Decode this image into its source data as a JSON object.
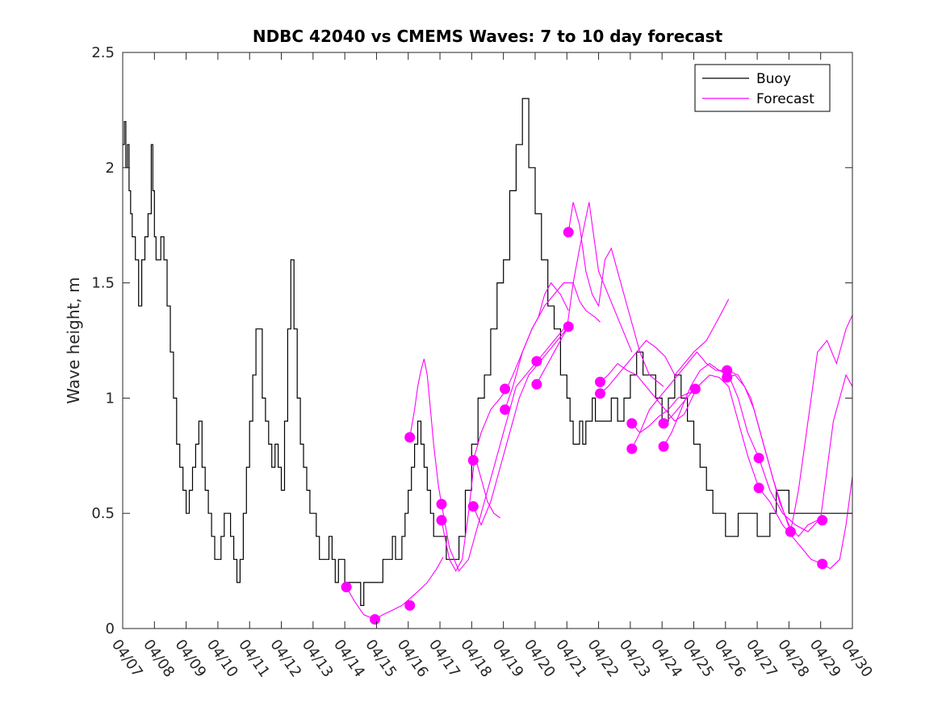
{
  "chart_data": {
    "type": "line",
    "title": "NDBC 42040 vs CMEMS Waves: 7 to 10 day forecast",
    "xlabel": "",
    "ylabel": "Wave height, m",
    "xlim": [
      0,
      23
    ],
    "ylim": [
      0,
      2.5
    ],
    "x_ticks": [
      "04/07",
      "04/08",
      "04/09",
      "04/10",
      "04/11",
      "04/12",
      "04/13",
      "04/14",
      "04/15",
      "04/16",
      "04/17",
      "04/18",
      "04/19",
      "04/20",
      "04/21",
      "04/22",
      "04/23",
      "04/24",
      "04/25",
      "04/26",
      "04/27",
      "04/28",
      "04/29",
      "04/30"
    ],
    "y_ticks": [
      0,
      0.5,
      1,
      1.5,
      2,
      2.5
    ],
    "y_tick_labels": [
      "0",
      "0.5",
      "1",
      "1.5",
      "2",
      "2.5"
    ],
    "grid": false,
    "legend_position": "top-right",
    "legend": [
      "Buoy",
      "Forecast"
    ],
    "colors": {
      "buoy": "#000000",
      "forecast": "#ff00ff"
    },
    "series": [
      {
        "name": "Buoy",
        "x": [
          0,
          0.05,
          0.1,
          0.15,
          0.2,
          0.25,
          0.3,
          0.35,
          0.4,
          0.5,
          0.6,
          0.7,
          0.8,
          0.9,
          0.95,
          1.0,
          1.05,
          1.1,
          1.2,
          1.3,
          1.4,
          1.5,
          1.6,
          1.7,
          1.8,
          1.9,
          2.0,
          2.1,
          2.2,
          2.3,
          2.4,
          2.5,
          2.6,
          2.7,
          2.8,
          2.9,
          3.0,
          3.1,
          3.2,
          3.3,
          3.4,
          3.5,
          3.6,
          3.7,
          3.8,
          3.9,
          4.0,
          4.1,
          4.2,
          4.3,
          4.4,
          4.5,
          4.6,
          4.7,
          4.8,
          4.9,
          5.0,
          5.1,
          5.2,
          5.3,
          5.4,
          5.5,
          5.6,
          5.7,
          5.8,
          5.9,
          6.0,
          6.1,
          6.2,
          6.3,
          6.4,
          6.5,
          6.6,
          6.7,
          6.8,
          6.9,
          7.0,
          7.1,
          7.2,
          7.3,
          7.4,
          7.5,
          7.6,
          7.7,
          7.8,
          7.9,
          8.0,
          8.1,
          8.2,
          8.3,
          8.4,
          8.5,
          8.6,
          8.7,
          8.8,
          8.9,
          9.0,
          9.1,
          9.2,
          9.3,
          9.4,
          9.5,
          9.6,
          9.7,
          9.8,
          9.9,
          10.0,
          10.2,
          10.4,
          10.6,
          10.8,
          11.0,
          11.2,
          11.4,
          11.6,
          11.8,
          12.0,
          12.2,
          12.4,
          12.6,
          12.8,
          13.0,
          13.2,
          13.4,
          13.6,
          13.8,
          14.0,
          14.1,
          14.2,
          14.3,
          14.4,
          14.5,
          14.6,
          14.7,
          14.8,
          14.9,
          15.0,
          15.2,
          15.4,
          15.6,
          15.8,
          16.0,
          16.2,
          16.4,
          16.6,
          16.8,
          17.0,
          17.2,
          17.4,
          17.6,
          17.8,
          18.0,
          18.2,
          18.4,
          18.6,
          18.8,
          19.0,
          19.2,
          19.4,
          19.6,
          19.8,
          20.0,
          20.2,
          20.4,
          20.6,
          20.8,
          21.0,
          21.2,
          21.4,
          21.6,
          21.8,
          22.0,
          22.2,
          22.4,
          22.6
        ],
        "y": [
          2.1,
          2.2,
          2.0,
          2.1,
          1.9,
          1.8,
          1.7,
          1.7,
          1.6,
          1.4,
          1.6,
          1.7,
          1.8,
          2.1,
          1.9,
          1.7,
          1.6,
          1.6,
          1.7,
          1.6,
          1.4,
          1.2,
          1.0,
          0.8,
          0.7,
          0.6,
          0.5,
          0.6,
          0.7,
          0.8,
          0.9,
          0.7,
          0.6,
          0.5,
          0.4,
          0.3,
          0.3,
          0.4,
          0.5,
          0.5,
          0.4,
          0.3,
          0.2,
          0.3,
          0.5,
          0.7,
          0.9,
          1.1,
          1.3,
          1.3,
          1.0,
          0.9,
          0.8,
          0.7,
          0.8,
          0.7,
          0.6,
          0.9,
          1.3,
          1.6,
          1.3,
          1.0,
          0.8,
          0.7,
          0.6,
          0.5,
          0.5,
          0.4,
          0.3,
          0.3,
          0.3,
          0.4,
          0.3,
          0.2,
          0.3,
          0.3,
          0.2,
          0.2,
          0.2,
          0.2,
          0.2,
          0.1,
          0.2,
          0.2,
          0.2,
          0.2,
          0.2,
          0.2,
          0.3,
          0.3,
          0.3,
          0.4,
          0.3,
          0.3,
          0.4,
          0.5,
          0.6,
          0.7,
          0.8,
          0.9,
          0.8,
          0.7,
          0.6,
          0.5,
          0.4,
          0.4,
          0.4,
          0.3,
          0.3,
          0.4,
          0.6,
          0.8,
          1.0,
          1.1,
          1.3,
          1.5,
          1.6,
          1.9,
          2.1,
          2.3,
          2.0,
          1.8,
          1.6,
          1.4,
          1.3,
          1.1,
          1.0,
          0.9,
          0.8,
          0.8,
          0.9,
          0.8,
          0.9,
          0.9,
          1.0,
          0.9,
          0.9,
          0.9,
          1.0,
          0.9,
          1.0,
          1.1,
          1.2,
          1.1,
          1.1,
          1.0,
          0.9,
          1.0,
          1.1,
          1.0,
          0.9,
          0.8,
          0.7,
          0.6,
          0.5,
          0.5,
          0.4,
          0.4,
          0.5,
          0.5,
          0.5,
          0.4,
          0.4,
          0.5,
          0.6,
          0.6,
          0.5,
          0.5,
          0.5,
          0.5,
          0.5,
          0.5,
          0.5,
          0.5,
          0.5
        ]
      },
      {
        "name": "Forecast",
        "runs": [
          {
            "x": [
              7.05,
              7.3,
              7.6,
              7.95,
              8.2,
              8.5,
              8.8,
              9.05,
              9.3,
              9.6,
              9.9,
              10.1
            ],
            "y": [
              0.18,
              0.12,
              0.06,
              0.04,
              0.06,
              0.08,
              0.1,
              0.13,
              0.16,
              0.2,
              0.26,
              0.31
            ]
          },
          {
            "x": [
              9.05,
              9.2,
              9.3,
              9.4,
              9.5,
              9.6,
              9.7,
              9.8,
              9.95,
              10.05
            ],
            "y": [
              0.83,
              0.95,
              1.05,
              1.12,
              1.17,
              1.1,
              0.95,
              0.8,
              0.62,
              0.54
            ]
          },
          {
            "x": [
              10.05,
              10.15,
              10.3,
              10.5,
              10.7,
              10.9,
              11.1,
              11.3,
              11.5,
              11.7,
              11.9
            ],
            "y": [
              0.47,
              0.4,
              0.3,
              0.25,
              0.3,
              0.5,
              0.75,
              0.65,
              0.55,
              0.5,
              0.48
            ]
          },
          {
            "x": [
              11.05,
              11.3,
              11.6,
              11.9,
              12.1,
              12.3,
              12.6,
              12.9,
              13.1,
              13.3,
              13.5,
              13.8,
              14.05
            ],
            "y": [
              0.73,
              0.85,
              0.95,
              1.0,
              1.04,
              1.1,
              1.2,
              1.3,
              1.35,
              1.45,
              1.5,
              1.45,
              1.38
            ]
          },
          {
            "x": [
              12.05,
              12.3,
              12.6,
              12.9,
              13.1,
              13.3,
              13.6,
              13.9,
              14.2,
              14.4,
              14.6,
              14.9,
              15.05
            ],
            "y": [
              0.95,
              1.05,
              1.2,
              1.3,
              1.35,
              1.4,
              1.45,
              1.5,
              1.5,
              1.42,
              1.38,
              1.35,
              1.33
            ]
          },
          {
            "x": [
              13.05,
              13.2,
              13.4,
              13.6,
              13.8,
              14.0,
              14.2,
              14.4,
              14.7,
              15.0,
              15.3,
              15.6,
              16.05
            ],
            "y": [
              1.06,
              1.1,
              1.15,
              1.2,
              1.25,
              1.3,
              1.5,
              1.65,
              1.85,
              1.55,
              1.45,
              1.35,
              1.2
            ]
          },
          {
            "x": [
              14.05,
              14.2,
              14.4,
              14.6,
              14.8,
              15.0,
              15.2,
              15.4,
              15.6,
              15.8,
              16.0,
              16.3,
              16.6,
              17.05
            ],
            "y": [
              1.72,
              1.85,
              1.75,
              1.55,
              1.45,
              1.4,
              1.6,
              1.65,
              1.55,
              1.45,
              1.35,
              1.2,
              1.1,
              1.05
            ]
          },
          {
            "x": [
              10.05,
              10.3,
              10.6,
              10.9,
              11.2,
              11.5,
              11.8,
              12.1,
              12.4,
              12.7,
              13.0,
              13.3,
              13.6,
              13.9,
              14.05
            ],
            "y": [
              0.54,
              0.35,
              0.25,
              0.3,
              0.45,
              0.6,
              0.75,
              0.9,
              1.05,
              1.1,
              1.15,
              1.2,
              1.25,
              1.3,
              1.31
            ]
          },
          {
            "x": [
              11.05,
              11.3,
              11.6,
              11.9,
              12.2,
              12.5,
              12.8,
              13.1,
              13.4,
              13.7,
              14.05
            ],
            "y": [
              0.53,
              0.45,
              0.55,
              0.7,
              0.85,
              1.0,
              1.1,
              1.15,
              1.2,
              1.25,
              1.31
            ]
          },
          {
            "x": [
              15.05,
              15.3,
              15.6,
              15.9,
              16.2,
              16.5,
              16.8,
              17.1,
              17.4,
              17.7,
              18.05
            ],
            "y": [
              1.07,
              1.1,
              1.15,
              1.12,
              1.1,
              1.05,
              1.0,
              0.95,
              0.9,
              0.93,
              1.03
            ]
          },
          {
            "x": [
              15.05,
              15.3,
              15.6,
              15.9,
              16.2,
              16.5,
              16.8,
              17.1,
              17.4,
              17.7,
              18.0,
              18.4,
              18.8,
              19.1
            ],
            "y": [
              1.02,
              1.05,
              1.1,
              1.15,
              1.2,
              1.25,
              1.22,
              1.18,
              1.1,
              1.15,
              1.2,
              1.25,
              1.35,
              1.43
            ]
          },
          {
            "x": [
              16.05,
              16.3,
              16.6,
              16.9,
              17.2,
              17.5,
              17.8,
              18.1,
              18.4,
              18.7,
              19.05
            ],
            "y": [
              0.78,
              0.85,
              0.95,
              1.0,
              1.05,
              1.1,
              1.15,
              1.2,
              1.15,
              1.12,
              1.12
            ]
          },
          {
            "x": [
              16.05,
              16.3,
              16.6,
              16.9,
              17.2,
              17.5,
              17.8,
              18.05
            ],
            "y": [
              0.89,
              0.85,
              0.88,
              0.92,
              0.95,
              1.0,
              1.02,
              1.03
            ]
          },
          {
            "x": [
              17.05,
              17.3,
              17.6,
              17.9,
              18.2,
              18.5,
              18.8,
              19.1,
              19.4,
              19.7,
              20.05
            ],
            "y": [
              0.79,
              0.85,
              0.95,
              1.05,
              1.12,
              1.15,
              1.12,
              1.1,
              1.0,
              0.85,
              0.74
            ]
          },
          {
            "x": [
              17.05,
              17.3,
              17.6,
              17.9,
              18.2,
              18.5,
              18.8,
              19.1,
              19.4,
              19.7,
              20.05
            ],
            "y": [
              0.89,
              0.92,
              0.97,
              1.02,
              1.06,
              1.1,
              1.09,
              1.05,
              0.9,
              0.75,
              0.61
            ]
          },
          {
            "x": [
              19.05,
              19.3,
              19.6,
              19.9,
              20.2,
              20.5,
              20.8,
              21.05
            ],
            "y": [
              1.09,
              1.1,
              1.05,
              0.95,
              0.8,
              0.65,
              0.52,
              0.42
            ]
          },
          {
            "x": [
              19.05,
              19.4,
              19.8,
              20.1,
              20.4,
              20.7,
              21.0,
              21.3,
              21.6,
              21.9,
              22.05
            ],
            "y": [
              1.12,
              1.1,
              1.0,
              0.85,
              0.7,
              0.55,
              0.45,
              0.4,
              0.45,
              0.47,
              0.47
            ]
          },
          {
            "x": [
              20.05,
              20.4,
              20.8,
              21.1,
              21.4,
              21.7,
              22.05
            ],
            "y": [
              0.61,
              0.55,
              0.45,
              0.4,
              0.35,
              0.3,
              0.28
            ]
          },
          {
            "x": [
              21.05,
              21.3,
              21.6,
              21.9,
              22.2,
              22.5,
              22.8,
              23.0
            ],
            "y": [
              0.42,
              0.6,
              0.9,
              1.2,
              1.25,
              1.15,
              1.3,
              1.36
            ]
          },
          {
            "x": [
              22.05,
              22.3,
              22.6,
              22.8,
              23.0
            ],
            "y": [
              0.28,
              0.26,
              0.3,
              0.45,
              0.66
            ]
          },
          {
            "x": [
              20.05,
              20.4,
              20.8,
              21.2,
              21.6,
              22.0,
              22.4,
              22.8,
              23.0
            ],
            "y": [
              0.74,
              0.6,
              0.5,
              0.45,
              0.42,
              0.48,
              0.9,
              1.1,
              1.05
            ]
          }
        ],
        "markers_x": [
          7.05,
          7.95,
          9.05,
          9.05,
          10.05,
          10.05,
          11.05,
          11.05,
          12.05,
          12.05,
          13.05,
          13.05,
          14.05,
          14.05,
          15.05,
          15.05,
          16.05,
          16.05,
          17.05,
          17.05,
          18.05,
          19.05,
          19.05,
          20.05,
          20.05,
          21.05,
          22.05,
          22.05
        ],
        "markers_y": [
          0.18,
          0.04,
          0.1,
          0.83,
          0.54,
          0.47,
          0.73,
          0.53,
          1.04,
          0.95,
          1.16,
          1.06,
          1.72,
          1.31,
          1.07,
          1.02,
          0.89,
          0.78,
          0.89,
          0.79,
          1.04,
          1.12,
          1.09,
          0.74,
          0.61,
          0.42,
          0.47,
          0.28
        ]
      }
    ]
  }
}
